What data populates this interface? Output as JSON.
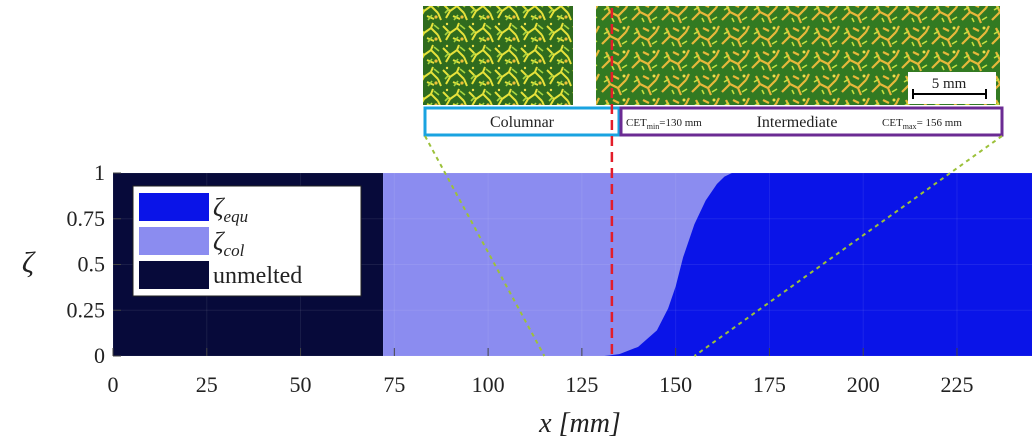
{
  "chart_data": {
    "type": "area",
    "xlabel": "x [mm]",
    "ylabel": "ζ",
    "xlim": [
      0,
      245
    ],
    "ylim": [
      0,
      1
    ],
    "xticks": [
      0,
      25,
      50,
      75,
      100,
      125,
      150,
      175,
      200,
      225
    ],
    "yticks": [
      0,
      0.25,
      0.5,
      0.75,
      1
    ],
    "ytick_labels": [
      "0",
      "0.25",
      "0.5",
      "0.75",
      "1"
    ],
    "grid": true,
    "legend_position": "top-left",
    "legend": [
      {
        "key": "equ",
        "base": "ζ",
        "sub": "equ",
        "color": "#0a14e8"
      },
      {
        "key": "col",
        "base": "ζ",
        "sub": "col",
        "color": "#8b8cf0"
      },
      {
        "key": "unmelted",
        "base": "unmelted",
        "sub": "",
        "color": "#070a3a"
      }
    ],
    "unmelted_end_x": 72,
    "zeta_equ_boundary": {
      "x": [
        72,
        131,
        135,
        140,
        145,
        148,
        150,
        152,
        155,
        158,
        161,
        163,
        165,
        245
      ],
      "y": [
        0,
        0,
        0.01,
        0.05,
        0.14,
        0.26,
        0.38,
        0.54,
        0.72,
        0.85,
        0.94,
        0.98,
        1,
        1
      ]
    },
    "cet_line_x": 133,
    "zoom_lines_x": [
      115,
      155
    ]
  },
  "micrographs": {
    "scale_bar_label": "5 mm",
    "columnar_label": "Columnar",
    "intermediate_label": "Intermediate",
    "cet_min": {
      "base": "CET",
      "sub": "min",
      "value": "=130 mm"
    },
    "cet_max": {
      "base": "CET",
      "sub": "max",
      "value": "= 156 mm"
    }
  },
  "colors": {
    "unmelted": "#070a3a",
    "zeta_col": "#8b8cf0",
    "zeta_equ": "#0a14e8",
    "cet_line": "#e31d2a",
    "zoom_line": "#9cc13a",
    "columnar_box": "#1aa3e0",
    "intermediate_box": "#6b2b93"
  }
}
